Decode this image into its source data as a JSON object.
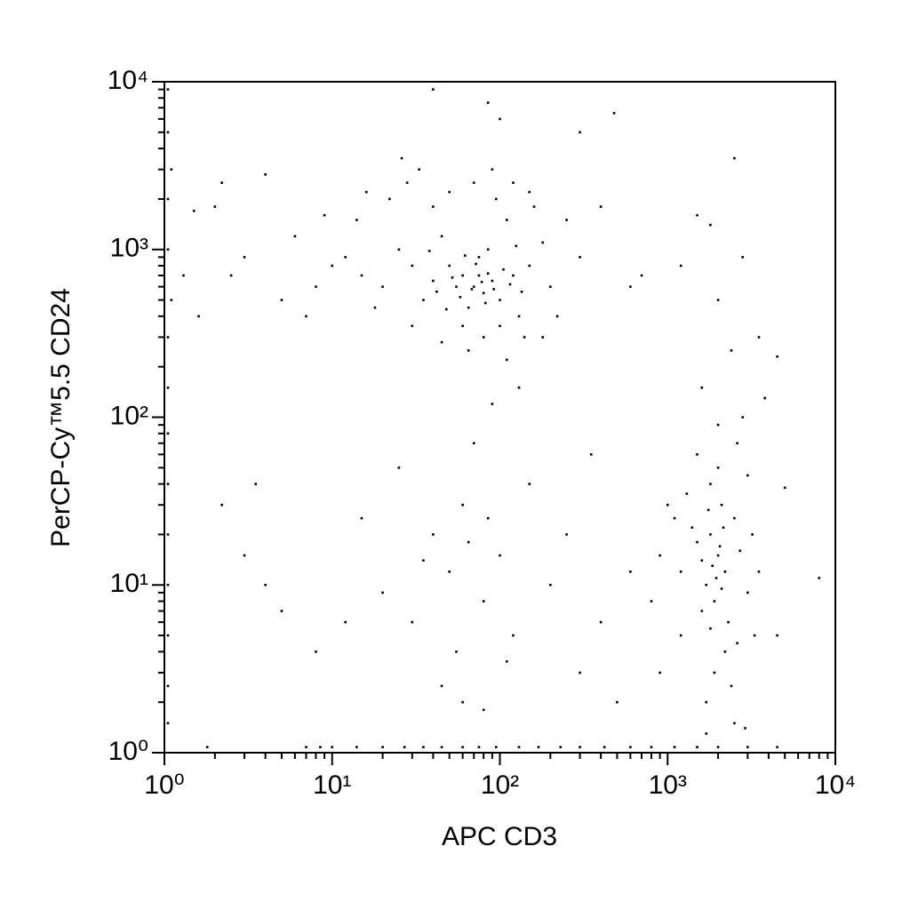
{
  "chart_data": {
    "type": "scatter",
    "x_label": "APC CD3",
    "y_label": "PerCP-Cy™5.5 CD24",
    "xlog": true,
    "ylog": true,
    "color": "#000000",
    "xlim": [
      1,
      10000
    ],
    "ylim": [
      1,
      10000
    ],
    "xticks": [
      {
        "value": 1,
        "label": "10⁰"
      },
      {
        "value": 10,
        "label": "10¹"
      },
      {
        "value": 100,
        "label": "10²"
      },
      {
        "value": 1000,
        "label": "10³"
      },
      {
        "value": 10000,
        "label": "10⁴"
      }
    ],
    "yticks": [
      {
        "value": 1,
        "label": "10⁰"
      },
      {
        "value": 10,
        "label": "10¹"
      },
      {
        "value": 100,
        "label": "10²"
      },
      {
        "value": 1000,
        "label": "10³"
      },
      {
        "value": 10000,
        "label": "10⁴"
      }
    ],
    "xminorticks": [
      2,
      3,
      4,
      5,
      6,
      7,
      8,
      9,
      20,
      30,
      40,
      50,
      60,
      70,
      80,
      90,
      200,
      300,
      400,
      500,
      600,
      700,
      800,
      900,
      2000,
      3000,
      4000,
      5000,
      6000,
      7000,
      8000,
      9000
    ],
    "yminorticks": [
      2,
      3,
      4,
      5,
      6,
      7,
      8,
      9,
      20,
      30,
      40,
      50,
      60,
      70,
      80,
      90,
      200,
      300,
      400,
      500,
      600,
      700,
      800,
      900,
      2000,
      3000,
      4000,
      5000,
      6000,
      7000,
      8000,
      9000
    ],
    "x": [
      70,
      60,
      80,
      90,
      50,
      100,
      75,
      65,
      85,
      55,
      120,
      40,
      30,
      45,
      110,
      130,
      150,
      20,
      25,
      35,
      15,
      12,
      200,
      180,
      160,
      95,
      70,
      50,
      40,
      60,
      80,
      100,
      140,
      30,
      18,
      10,
      8,
      6,
      5,
      14,
      22,
      28,
      33,
      90,
      120,
      150,
      250,
      300,
      220,
      180,
      65,
      45,
      110,
      75,
      85,
      68,
      78,
      58,
      92,
      72,
      52,
      62,
      82,
      105,
      48,
      38,
      42,
      115,
      125,
      135,
      3,
      2.5,
      2,
      4,
      2.2,
      1.5,
      1.3,
      1.6,
      7,
      9,
      16,
      26,
      40,
      85,
      100,
      480,
      300,
      2500,
      1500,
      1800,
      2000,
      700,
      2400,
      1600,
      4500,
      3500,
      400,
      600,
      1200,
      2800,
      2000,
      1800,
      2200,
      1700,
      2500,
      1500,
      1900,
      2100,
      1600,
      2300,
      1400,
      2700,
      1800,
      2000,
      1300,
      2600,
      1200,
      3000,
      1100,
      2200,
      1900,
      2400,
      1700,
      2500,
      3200,
      3500,
      3000,
      2800,
      2000,
      1500,
      1000,
      900,
      1200,
      2600,
      1800,
      1600,
      2100,
      1950,
      2050,
      1850,
      2150,
      1750,
      3300,
      800,
      900,
      2900,
      1700,
      3800,
      5000,
      8000,
      4500,
      40,
      50,
      60,
      80,
      100,
      120,
      150,
      200,
      30,
      25,
      70,
      90,
      130,
      55,
      45,
      110,
      35,
      65,
      85,
      20,
      15,
      12,
      8,
      5,
      3.5,
      3,
      2.2,
      4,
      300,
      400,
      500,
      250,
      350,
      600,
      80,
      60,
      1.05,
      1.05,
      1.1,
      1.05,
      1.05,
      1.1,
      1.05,
      1.05,
      1.05,
      1.05,
      1.05,
      1.05,
      1.05,
      1.05,
      1.05,
      1.8,
      7,
      8.5,
      10,
      14,
      20,
      27,
      35,
      45,
      60,
      75,
      95,
      130,
      170,
      230,
      300,
      420,
      600,
      800,
      1100,
      1500,
      2000,
      3000,
      4500
    ],
    "values": [
      600,
      700,
      550,
      650,
      800,
      500,
      900,
      450,
      1000,
      600,
      700,
      650,
      800,
      1200,
      1500,
      400,
      800,
      600,
      1000,
      500,
      700,
      900,
      600,
      1100,
      1800,
      2000,
      2500,
      2200,
      1800,
      350,
      300,
      350,
      300,
      350,
      450,
      800,
      600,
      1200,
      500,
      1500,
      2000,
      2500,
      3000,
      3000,
      2500,
      2200,
      1500,
      900,
      400,
      300,
      250,
      280,
      220,
      700,
      720,
      580,
      640,
      520,
      580,
      820,
      680,
      920,
      480,
      760,
      440,
      980,
      560,
      620,
      1050,
      560,
      900,
      700,
      1800,
      2800,
      2500,
      1700,
      700,
      400,
      400,
      1600,
      2200,
      3500,
      9000,
      7500,
      6000,
      6500,
      5000,
      3500,
      1600,
      1400,
      500,
      700,
      250,
      150,
      230,
      300,
      1800,
      600,
      800,
      900,
      15,
      20,
      12,
      10,
      25,
      18,
      8,
      30,
      14,
      6,
      22,
      16,
      40,
      50,
      35,
      70,
      12,
      9,
      25,
      4,
      3,
      2.5,
      2,
      1.5,
      20,
      12,
      45,
      100,
      90,
      60,
      30,
      15,
      5,
      4.5,
      5.5,
      7,
      9.5,
      11,
      17,
      13,
      22,
      28,
      5,
      8,
      3,
      1.4,
      1.3,
      130,
      38,
      11,
      5,
      20,
      12,
      30,
      8,
      15,
      5,
      40,
      10,
      6,
      50,
      70,
      120,
      150,
      4,
      2.5,
      3.5,
      14,
      18,
      25,
      9,
      25,
      6,
      4,
      7,
      40,
      15,
      30,
      10,
      3,
      6,
      2,
      20,
      60,
      12,
      1.8,
      2,
      9000,
      5000,
      3000,
      2000,
      1000,
      500,
      300,
      150,
      80,
      40,
      20,
      10,
      5,
      2.5,
      1.5,
      1.08,
      1.08,
      1.08,
      1.08,
      1.08,
      1.08,
      1.08,
      1.08,
      1.08,
      1.08,
      1.08,
      1.08,
      1.08,
      1.08,
      1.08,
      1.08,
      1.08,
      1.08,
      1.08,
      1.08,
      1.08,
      1.08,
      1.08,
      1.08
    ]
  }
}
